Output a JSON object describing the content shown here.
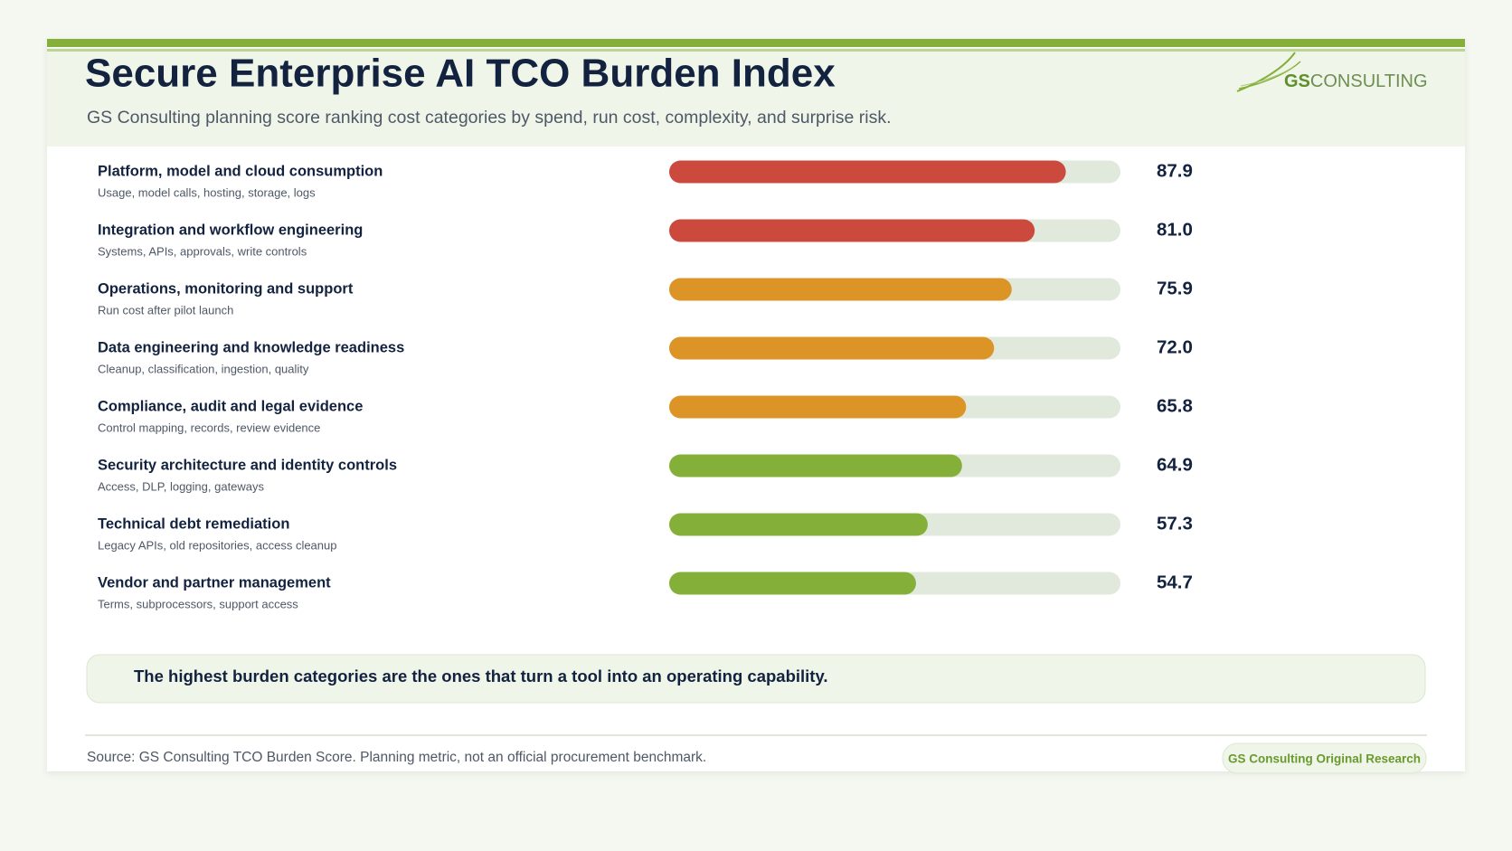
{
  "chart_data": {
    "type": "hbar",
    "title": "Secure Enterprise AI TCO Burden Index",
    "subtitle": "GS Consulting planning score ranking cost categories by spend, run cost, complexity, and surprise risk.",
    "logo": {
      "mark": "GS",
      "name": "CONSULTING"
    },
    "categories": [
      "Platform, model and cloud consumption",
      "Integration and workflow engineering",
      "Operations, monitoring and support",
      "Data engineering and knowledge readiness",
      "Compliance, audit and legal evidence",
      "Security architecture and identity controls",
      "Technical debt remediation",
      "Vendor and partner management"
    ],
    "descriptions": [
      "Usage, model calls, hosting, storage, logs",
      "Systems, APIs, approvals, write controls",
      "Run cost after pilot launch",
      "Cleanup, classification, ingestion, quality",
      "Control mapping, records, review evidence",
      "Access, DLP, logging, gateways",
      "Legacy APIs, old repositories, access cleanup",
      "Terms, subprocessors, support access"
    ],
    "values": [
      87.9,
      81,
      75.9,
      72,
      65.8,
      64.9,
      57.3,
      54.7
    ],
    "value_labels": [
      "87.9",
      "81.0",
      "75.9",
      "72.0",
      "65.8",
      "64.9",
      "57.3",
      "54.7"
    ],
    "colors": [
      "#cb4a3d",
      "#cb4a3d",
      "#dc9427",
      "#dc9427",
      "#dc9427",
      "#84b03a",
      "#84b03a",
      "#84b03a"
    ],
    "track_color": "#e1e8dc",
    "xlim": [
      0,
      100
    ],
    "callout": "The highest burden categories are the ones that turn a tool into an operating capability.",
    "source": "Source: GS Consulting TCO Burden Score. Planning metric, not an official procurement benchmark.",
    "badge": "GS Consulting Original Research"
  }
}
